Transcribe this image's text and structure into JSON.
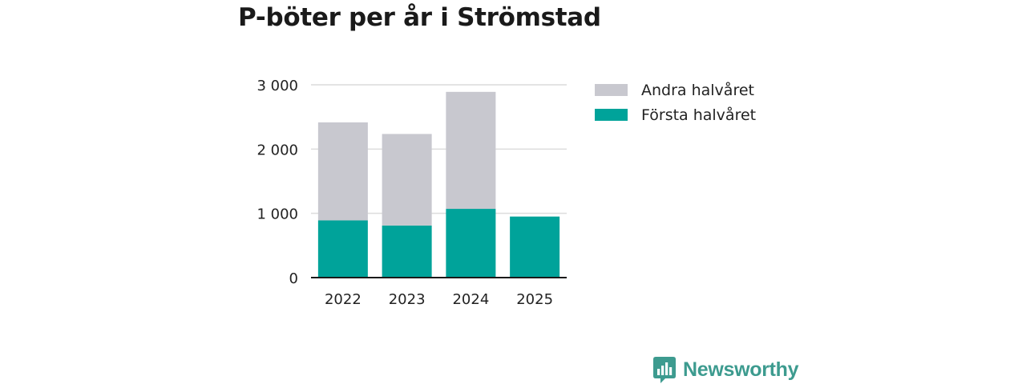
{
  "chart_data": {
    "type": "bar",
    "stacked": true,
    "title": "P-böter per år i Strömstad",
    "categories": [
      "2022",
      "2023",
      "2024",
      "2025"
    ],
    "series": [
      {
        "name": "Första halvåret",
        "color": "#00a39a",
        "values": [
          890,
          810,
          1070,
          950
        ]
      },
      {
        "name": "Andra halvåret",
        "color": "#c8c8cf",
        "values": [
          1525,
          1425,
          1820,
          0
        ]
      }
    ],
    "legend_order": [
      "Andra halvåret",
      "Första halvåret"
    ],
    "yticks": [
      0,
      1000,
      2000,
      3000
    ],
    "ytick_labels": [
      "0",
      "1 000",
      "2 000",
      "3 000"
    ],
    "ylim": [
      0,
      3000
    ],
    "xlabel": "",
    "ylabel": "",
    "gridlines": true,
    "legend_position": "right"
  },
  "branding": {
    "name": "Newsworthy",
    "color": "#3d9b8f",
    "icon": "bar-chart-speech-bubble-icon"
  }
}
